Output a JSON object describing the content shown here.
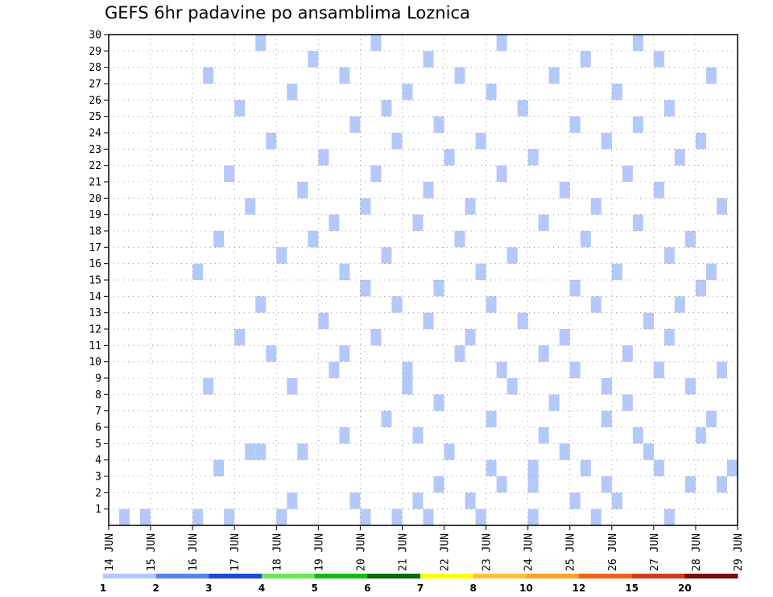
{
  "chart_data": {
    "type": "heatmap",
    "title": "GEFS 6hr padavine po ansamblima Loznica",
    "xlabel": "",
    "ylabel": "",
    "x_tick_labels": [
      "14 JUN",
      "15 JUN",
      "16 JUN",
      "17 JUN",
      "18 JUN",
      "19 JUN",
      "20 JUN",
      "21 JUN",
      "22 JUN",
      "23 JUN",
      "24 JUN",
      "25 JUN",
      "26 JUN",
      "27 JUN",
      "28 JUN",
      "29 JUN"
    ],
    "x_range": [
      0,
      60
    ],
    "x_step_hours": 6,
    "y_tick_labels": [
      "1",
      "2",
      "3",
      "4",
      "5",
      "6",
      "7",
      "8",
      "9",
      "10",
      "11",
      "12",
      "13",
      "14",
      "15",
      "16",
      "17",
      "18",
      "19",
      "20",
      "21",
      "22",
      "23",
      "24",
      "25",
      "26",
      "27",
      "28",
      "29",
      "30"
    ],
    "y_range": [
      0,
      30
    ],
    "grid": true,
    "legend_position": "bottom",
    "legend": {
      "labels": [
        "1",
        "2",
        "3",
        "4",
        "5",
        "6",
        "7",
        "8",
        "10",
        "12",
        "15",
        "20"
      ],
      "colors": [
        "#b4c8fa",
        "#5a82f0",
        "#1e46d7",
        "#6ee65a",
        "#14b914",
        "#0a690a",
        "#ffff00",
        "#ffc03c",
        "#ffa028",
        "#f06414",
        "#d23c14",
        "#7d0a0a"
      ]
    },
    "class_colors": [
      "#b4c8fa",
      "#5a82f0",
      "#1e46d7",
      "#6ee65a",
      "#14b914",
      "#0a690a",
      "#ffff00",
      "#ffb43c",
      "#ff8c1e",
      "#e63c14",
      "#c81e0a",
      "#7d0a0a"
    ],
    "cells": [
      [
        0,
        1,
        0
      ],
      [
        0,
        3,
        0
      ],
      [
        0,
        8,
        0
      ],
      [
        0,
        11,
        0
      ],
      [
        0,
        16,
        0
      ],
      [
        0,
        24,
        0
      ],
      [
        0,
        27,
        0
      ],
      [
        0,
        30,
        0
      ],
      [
        0,
        35,
        0
      ],
      [
        0,
        40,
        0
      ],
      [
        0,
        46,
        0
      ],
      [
        0,
        53,
        0
      ],
      [
        0,
        17,
        1
      ],
      [
        0,
        23,
        1
      ],
      [
        0,
        29,
        1
      ],
      [
        0,
        34,
        1
      ],
      [
        0,
        44,
        1
      ],
      [
        0,
        48,
        1
      ],
      [
        0,
        31,
        2
      ],
      [
        0,
        37,
        2
      ],
      [
        0,
        40,
        2
      ],
      [
        0,
        47,
        2
      ],
      [
        0,
        55,
        2
      ],
      [
        0,
        58,
        2
      ],
      [
        0,
        10,
        3
      ],
      [
        0,
        36,
        3
      ],
      [
        0,
        40,
        3
      ],
      [
        0,
        52,
        3
      ],
      [
        0,
        59,
        3
      ],
      [
        0,
        45,
        3
      ],
      [
        0,
        13,
        4
      ],
      [
        0,
        14,
        4
      ],
      [
        0,
        18,
        4
      ],
      [
        0,
        32,
        4
      ],
      [
        0,
        43,
        4
      ],
      [
        0,
        51,
        4
      ],
      [
        0,
        22,
        5
      ],
      [
        0,
        29,
        5
      ],
      [
        0,
        41,
        5
      ],
      [
        0,
        50,
        5
      ],
      [
        0,
        56,
        5
      ],
      [
        0,
        26,
        6
      ],
      [
        0,
        36,
        6
      ],
      [
        0,
        47,
        6
      ],
      [
        0,
        57,
        6
      ],
      [
        0,
        31,
        7
      ],
      [
        0,
        42,
        7
      ],
      [
        0,
        49,
        7
      ],
      [
        0,
        9,
        8
      ],
      [
        0,
        17,
        8
      ],
      [
        0,
        28,
        8
      ],
      [
        0,
        38,
        8
      ],
      [
        0,
        47,
        8
      ],
      [
        0,
        55,
        8
      ],
      [
        0,
        21,
        9
      ],
      [
        0,
        28,
        9
      ],
      [
        0,
        37,
        9
      ],
      [
        0,
        44,
        9
      ],
      [
        0,
        52,
        9
      ],
      [
        0,
        58,
        9
      ],
      [
        0,
        15,
        10
      ],
      [
        0,
        22,
        10
      ],
      [
        0,
        33,
        10
      ],
      [
        0,
        41,
        10
      ],
      [
        0,
        49,
        10
      ],
      [
        0,
        12,
        11
      ],
      [
        0,
        25,
        11
      ],
      [
        0,
        34,
        11
      ],
      [
        0,
        43,
        11
      ],
      [
        0,
        53,
        11
      ],
      [
        0,
        20,
        12
      ],
      [
        0,
        30,
        12
      ],
      [
        0,
        39,
        12
      ],
      [
        0,
        51,
        12
      ],
      [
        0,
        14,
        13
      ],
      [
        0,
        27,
        13
      ],
      [
        0,
        36,
        13
      ],
      [
        0,
        46,
        13
      ],
      [
        0,
        54,
        13
      ],
      [
        0,
        24,
        14
      ],
      [
        0,
        31,
        14
      ],
      [
        0,
        44,
        14
      ],
      [
        0,
        56,
        14
      ],
      [
        0,
        8,
        15
      ],
      [
        0,
        22,
        15
      ],
      [
        0,
        35,
        15
      ],
      [
        0,
        48,
        15
      ],
      [
        0,
        57,
        15
      ],
      [
        0,
        16,
        16
      ],
      [
        0,
        26,
        16
      ],
      [
        0,
        38,
        16
      ],
      [
        0,
        53,
        16
      ],
      [
        0,
        10,
        17
      ],
      [
        0,
        19,
        17
      ],
      [
        0,
        33,
        17
      ],
      [
        0,
        45,
        17
      ],
      [
        0,
        55,
        17
      ],
      [
        0,
        21,
        18
      ],
      [
        0,
        29,
        18
      ],
      [
        0,
        41,
        18
      ],
      [
        0,
        50,
        18
      ],
      [
        0,
        13,
        19
      ],
      [
        0,
        24,
        19
      ],
      [
        0,
        34,
        19
      ],
      [
        0,
        46,
        19
      ],
      [
        0,
        58,
        19
      ],
      [
        0,
        18,
        20
      ],
      [
        0,
        30,
        20
      ],
      [
        0,
        43,
        20
      ],
      [
        0,
        52,
        20
      ],
      [
        0,
        11,
        21
      ],
      [
        0,
        25,
        21
      ],
      [
        0,
        37,
        21
      ],
      [
        0,
        49,
        21
      ],
      [
        0,
        20,
        22
      ],
      [
        0,
        32,
        22
      ],
      [
        0,
        40,
        22
      ],
      [
        0,
        54,
        22
      ],
      [
        0,
        15,
        23
      ],
      [
        0,
        27,
        23
      ],
      [
        0,
        35,
        23
      ],
      [
        0,
        47,
        23
      ],
      [
        0,
        56,
        23
      ],
      [
        0,
        23,
        24
      ],
      [
        0,
        31,
        24
      ],
      [
        0,
        44,
        24
      ],
      [
        0,
        50,
        24
      ],
      [
        0,
        12,
        25
      ],
      [
        0,
        26,
        25
      ],
      [
        0,
        39,
        25
      ],
      [
        0,
        53,
        25
      ],
      [
        0,
        17,
        26
      ],
      [
        0,
        28,
        26
      ],
      [
        0,
        36,
        26
      ],
      [
        0,
        48,
        26
      ],
      [
        0,
        9,
        27
      ],
      [
        0,
        22,
        27
      ],
      [
        0,
        33,
        27
      ],
      [
        0,
        42,
        27
      ],
      [
        0,
        57,
        27
      ],
      [
        0,
        19,
        28
      ],
      [
        0,
        30,
        28
      ],
      [
        0,
        45,
        28
      ],
      [
        0,
        52,
        28
      ],
      [
        0,
        14,
        29
      ],
      [
        0,
        25,
        29
      ],
      [
        0,
        37,
        29
      ],
      [
        0,
        50,
        29
      ]
    ]
  }
}
